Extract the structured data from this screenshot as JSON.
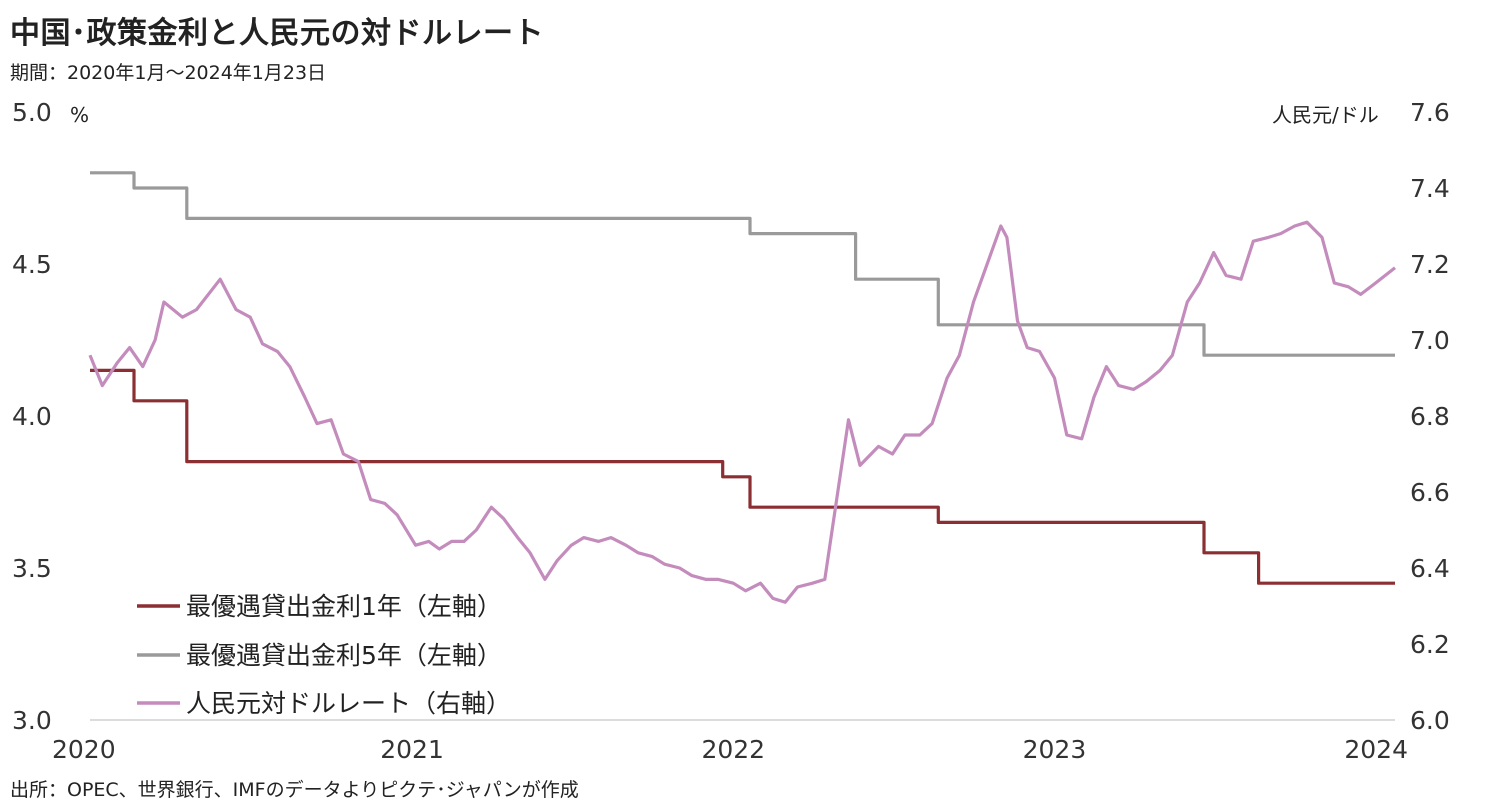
{
  "title": "中国･政策金利と人民元の対ドルレート",
  "subtitle": "期間：2020年1月～2024年1月23日",
  "source": "出所：OPEC、世界銀行、IMFのデータよりピクテ･ジャパンが作成",
  "colors": {
    "lpr1y": "#8b2f33",
    "lpr5y": "#9a9a9a",
    "cny": "#c48cbc"
  },
  "chart_data": {
    "type": "line",
    "x_range": [
      "2020-01-01",
      "2024-01-23"
    ],
    "xticks": [
      "2020",
      "2021",
      "2022",
      "2023",
      "2024"
    ],
    "y_left": {
      "unit": "%",
      "range": [
        3.0,
        5.0
      ],
      "ticks": [
        "5.0",
        "4.5",
        "4.0",
        "3.5",
        "3.0"
      ]
    },
    "y_right": {
      "unit": "人民元/ドル",
      "range": [
        6.0,
        7.6
      ],
      "ticks": [
        "7.6",
        "7.4",
        "7.2",
        "7.0",
        "6.8",
        "6.6",
        "6.4",
        "6.2",
        "6.0"
      ]
    },
    "series": [
      {
        "name": "最優遇貸出金利1年（左軸）",
        "axis": "left",
        "color": "#8b2f33",
        "step": true,
        "points": [
          [
            "2020-01-01",
            4.15
          ],
          [
            "2020-02-20",
            4.05
          ],
          [
            "2020-04-20",
            3.85
          ],
          [
            "2021-12-20",
            3.8
          ],
          [
            "2022-01-20",
            3.7
          ],
          [
            "2022-08-22",
            3.65
          ],
          [
            "2023-06-20",
            3.55
          ],
          [
            "2023-08-21",
            3.45
          ],
          [
            "2024-01-23",
            3.45
          ]
        ]
      },
      {
        "name": "最優遇貸出金利5年（左軸）",
        "axis": "left",
        "color": "#9a9a9a",
        "step": true,
        "points": [
          [
            "2020-01-01",
            4.8
          ],
          [
            "2020-02-20",
            4.75
          ],
          [
            "2020-04-20",
            4.65
          ],
          [
            "2022-01-20",
            4.6
          ],
          [
            "2022-05-20",
            4.45
          ],
          [
            "2022-08-22",
            4.3
          ],
          [
            "2023-06-20",
            4.2
          ],
          [
            "2024-01-23",
            4.2
          ]
        ]
      },
      {
        "name": "人民元対ドルレート（右軸）",
        "axis": "right",
        "color": "#c48cbc",
        "step": false,
        "points": [
          [
            "2020-01-01",
            6.96
          ],
          [
            "2020-01-15",
            6.88
          ],
          [
            "2020-02-01",
            6.94
          ],
          [
            "2020-02-15",
            6.98
          ],
          [
            "2020-03-01",
            6.93
          ],
          [
            "2020-03-15",
            7.0
          ],
          [
            "2020-03-25",
            7.1
          ],
          [
            "2020-04-15",
            7.06
          ],
          [
            "2020-05-01",
            7.08
          ],
          [
            "2020-05-28",
            7.16
          ],
          [
            "2020-06-15",
            7.08
          ],
          [
            "2020-07-01",
            7.06
          ],
          [
            "2020-07-15",
            6.99
          ],
          [
            "2020-08-01",
            6.97
          ],
          [
            "2020-08-15",
            6.93
          ],
          [
            "2020-09-01",
            6.85
          ],
          [
            "2020-09-15",
            6.78
          ],
          [
            "2020-10-01",
            6.79
          ],
          [
            "2020-10-15",
            6.7
          ],
          [
            "2020-11-01",
            6.68
          ],
          [
            "2020-11-15",
            6.58
          ],
          [
            "2020-12-01",
            6.57
          ],
          [
            "2020-12-15",
            6.54
          ],
          [
            "2021-01-05",
            6.46
          ],
          [
            "2021-01-20",
            6.47
          ],
          [
            "2021-02-01",
            6.45
          ],
          [
            "2021-02-15",
            6.47
          ],
          [
            "2021-03-01",
            6.47
          ],
          [
            "2021-03-15",
            6.5
          ],
          [
            "2021-04-01",
            6.56
          ],
          [
            "2021-04-15",
            6.53
          ],
          [
            "2021-05-01",
            6.48
          ],
          [
            "2021-05-15",
            6.44
          ],
          [
            "2021-06-01",
            6.37
          ],
          [
            "2021-06-15",
            6.42
          ],
          [
            "2021-07-01",
            6.46
          ],
          [
            "2021-07-15",
            6.48
          ],
          [
            "2021-08-01",
            6.47
          ],
          [
            "2021-08-15",
            6.48
          ],
          [
            "2021-09-01",
            6.46
          ],
          [
            "2021-09-15",
            6.44
          ],
          [
            "2021-10-01",
            6.43
          ],
          [
            "2021-10-15",
            6.41
          ],
          [
            "2021-11-01",
            6.4
          ],
          [
            "2021-11-15",
            6.38
          ],
          [
            "2021-12-01",
            6.37
          ],
          [
            "2021-12-15",
            6.37
          ],
          [
            "2022-01-01",
            6.36
          ],
          [
            "2022-01-15",
            6.34
          ],
          [
            "2022-02-01",
            6.36
          ],
          [
            "2022-02-15",
            6.32
          ],
          [
            "2022-03-01",
            6.31
          ],
          [
            "2022-03-15",
            6.35
          ],
          [
            "2022-04-01",
            6.36
          ],
          [
            "2022-04-15",
            6.37
          ],
          [
            "2022-05-01",
            6.62
          ],
          [
            "2022-05-12",
            6.79
          ],
          [
            "2022-05-25",
            6.67
          ],
          [
            "2022-06-15",
            6.72
          ],
          [
            "2022-07-01",
            6.7
          ],
          [
            "2022-07-15",
            6.75
          ],
          [
            "2022-08-01",
            6.75
          ],
          [
            "2022-08-15",
            6.78
          ],
          [
            "2022-09-01",
            6.9
          ],
          [
            "2022-09-15",
            6.96
          ],
          [
            "2022-10-01",
            7.1
          ],
          [
            "2022-10-15",
            7.19
          ],
          [
            "2022-11-01",
            7.3
          ],
          [
            "2022-11-08",
            7.27
          ],
          [
            "2022-11-20",
            7.05
          ],
          [
            "2022-12-01",
            6.98
          ],
          [
            "2022-12-15",
            6.97
          ],
          [
            "2023-01-01",
            6.9
          ],
          [
            "2023-01-15",
            6.75
          ],
          [
            "2023-02-01",
            6.74
          ],
          [
            "2023-02-15",
            6.85
          ],
          [
            "2023-03-01",
            6.93
          ],
          [
            "2023-03-15",
            6.88
          ],
          [
            "2023-04-01",
            6.87
          ],
          [
            "2023-04-15",
            6.89
          ],
          [
            "2023-05-01",
            6.92
          ],
          [
            "2023-05-15",
            6.96
          ],
          [
            "2023-06-01",
            7.1
          ],
          [
            "2023-06-15",
            7.15
          ],
          [
            "2023-07-01",
            7.23
          ],
          [
            "2023-07-15",
            7.17
          ],
          [
            "2023-08-01",
            7.16
          ],
          [
            "2023-08-15",
            7.26
          ],
          [
            "2023-09-01",
            7.27
          ],
          [
            "2023-09-15",
            7.28
          ],
          [
            "2023-10-01",
            7.3
          ],
          [
            "2023-10-15",
            7.31
          ],
          [
            "2023-11-01",
            7.27
          ],
          [
            "2023-11-15",
            7.15
          ],
          [
            "2023-12-01",
            7.14
          ],
          [
            "2023-12-15",
            7.12
          ],
          [
            "2024-01-01",
            7.15
          ],
          [
            "2024-01-23",
            7.19
          ]
        ]
      }
    ]
  }
}
